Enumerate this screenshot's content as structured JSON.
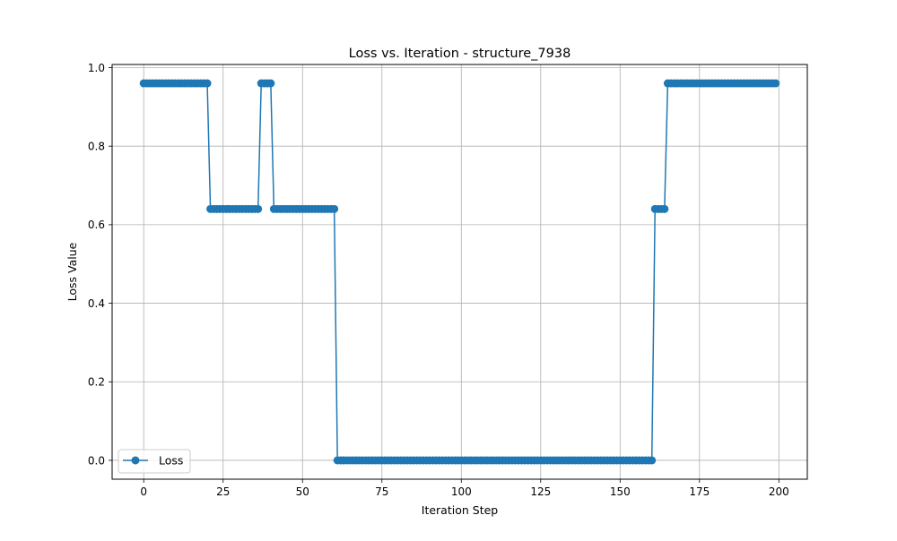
{
  "chart_data": {
    "type": "line",
    "title": "Loss vs. Iteration - structure_7938",
    "xlabel": "Iteration Step",
    "ylabel": "Loss Value",
    "xlim": [
      -9.95,
      208.95
    ],
    "ylim": [
      -0.048,
      1.008
    ],
    "xticks": [
      0,
      25,
      50,
      75,
      100,
      125,
      150,
      175,
      200
    ],
    "yticks": [
      0.0,
      0.2,
      0.4,
      0.6,
      0.8,
      1.0
    ],
    "ytick_labels": [
      "0.0",
      "0.2",
      "0.4",
      "0.6",
      "0.8",
      "1.0"
    ],
    "grid": true,
    "legend_position": "lower-left",
    "series": [
      {
        "name": "Loss",
        "color": "#1f77b4",
        "marker": "circle",
        "segments": [
          {
            "from": 0,
            "to": 20,
            "value": 0.96
          },
          {
            "from": 21,
            "to": 36,
            "value": 0.64
          },
          {
            "from": 37,
            "to": 40,
            "value": 0.96
          },
          {
            "from": 41,
            "to": 60,
            "value": 0.64
          },
          {
            "from": 61,
            "to": 160,
            "value": 0.0
          },
          {
            "from": 161,
            "to": 164,
            "value": 0.64
          },
          {
            "from": 165,
            "to": 199,
            "value": 0.96
          }
        ]
      }
    ]
  }
}
